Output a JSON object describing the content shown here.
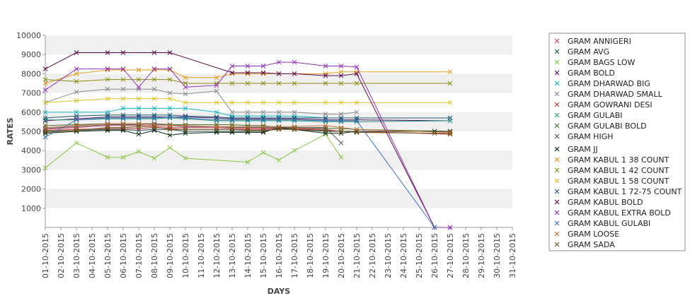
{
  "chart_data": {
    "type": "line",
    "xlabel": "DAYS",
    "ylabel": "RATES",
    "ylim": [
      0,
      10000
    ],
    "y_ticks": [
      1000,
      2000,
      3000,
      4000,
      5000,
      6000,
      7000,
      8000,
      9000,
      10000
    ],
    "legend_position": "right",
    "grid": false,
    "band_color": "#f0f0f0",
    "categories": [
      "01-10-2015",
      "02-10-2015",
      "03-10-2015",
      "04-10-2015",
      "05-10-2015",
      "06-10-2015",
      "07-10-2015",
      "08-10-2015",
      "09-10-2015",
      "10-10-2015",
      "11-10-2015",
      "12-10-2015",
      "13-10-2015",
      "14-10-2015",
      "15-10-2015",
      "16-10-2015",
      "17-10-2015",
      "18-10-2015",
      "19-10-2015",
      "20-10-2015",
      "21-10-2015",
      "22-10-2015",
      "23-10-2015",
      "24-10-2015",
      "25-10-2015",
      "26-10-2015",
      "27-10-2015",
      "28-10-2015",
      "29-10-2015",
      "30-10-2015",
      "31-10-2015"
    ],
    "series": [
      {
        "name": "GRAM ANNIGERI",
        "color": "#d6446e",
        "values": [
          5100,
          null,
          5200,
          null,
          5300,
          5300,
          5300,
          5300,
          5200,
          5200,
          null,
          5200,
          5150,
          5150,
          5150,
          5150,
          5150,
          null,
          5100,
          5000,
          5000,
          null,
          null,
          null,
          null,
          null,
          4850,
          null,
          null,
          null,
          null
        ]
      },
      {
        "name": "GRAM AVG",
        "color": "#1f4f4f",
        "values": [
          5000,
          null,
          5050,
          null,
          5100,
          5100,
          5050,
          5100,
          5100,
          5000,
          null,
          5000,
          5000,
          5000,
          5000,
          5150,
          5100,
          null,
          5000,
          5000,
          5000,
          null,
          null,
          null,
          null,
          5000,
          5000,
          null,
          null,
          null,
          null
        ]
      },
      {
        "name": "GRAM BAGS LOW",
        "color": "#88c540",
        "values": [
          3100,
          null,
          4400,
          null,
          3650,
          3650,
          3950,
          3600,
          4150,
          3600,
          null,
          null,
          null,
          3400,
          3900,
          3500,
          4000,
          null,
          4850,
          3650,
          null,
          null,
          null,
          null,
          null,
          null,
          null,
          null,
          null,
          null,
          null
        ]
      },
      {
        "name": "GRAM BOLD",
        "color": "#4b1560",
        "values": [
          5550,
          null,
          5650,
          null,
          5750,
          5750,
          5750,
          5750,
          5750,
          5750,
          null,
          5700,
          5650,
          5650,
          5650,
          5650,
          5650,
          null,
          5600,
          5600,
          5600,
          null,
          null,
          null,
          null,
          null,
          5550,
          null,
          null,
          null,
          null
        ]
      },
      {
        "name": "GRAM DHARWAD BIG",
        "color": "#17b3c4",
        "values": [
          6000,
          null,
          6000,
          null,
          6000,
          6200,
          6200,
          6200,
          6200,
          6200,
          null,
          6000,
          5800,
          5800,
          5800,
          5800,
          5800,
          null,
          5700,
          5700,
          5700,
          null,
          null,
          null,
          null,
          null,
          5700,
          null,
          null,
          null,
          null
        ]
      },
      {
        "name": "GRAM DHARWAD SMALL",
        "color": "#8a8a8a",
        "values": [
          6500,
          null,
          7050,
          null,
          7200,
          7200,
          7200,
          7200,
          7000,
          6950,
          null,
          7100,
          6000,
          6000,
          6000,
          6000,
          6000,
          null,
          5900,
          5900,
          6000,
          null,
          null,
          null,
          null,
          null,
          null,
          null,
          null,
          null,
          null
        ]
      },
      {
        "name": "GRAM GOWRANI DESI",
        "color": "#c43a2f",
        "values": [
          5050,
          null,
          5100,
          null,
          5150,
          5150,
          5150,
          5200,
          5150,
          5100,
          null,
          5100,
          5100,
          5100,
          5100,
          5150,
          5150,
          null,
          5050,
          5000,
          4950,
          null,
          null,
          null,
          null,
          null,
          4900,
          null,
          null,
          null,
          null
        ]
      },
      {
        "name": "GRAM GULABI",
        "color": "#2a9a82",
        "values": [
          5600,
          null,
          5600,
          null,
          5650,
          5650,
          5650,
          5650,
          5700,
          5650,
          null,
          5550,
          5550,
          5550,
          5550,
          5550,
          5550,
          null,
          5500,
          5500,
          5500,
          null,
          null,
          null,
          null,
          null,
          5550,
          null,
          null,
          null,
          null
        ]
      },
      {
        "name": "GRAM GULABI BOLD",
        "color": "#4e6e2a",
        "values": [
          5300,
          null,
          5350,
          null,
          5400,
          5400,
          5400,
          5400,
          5350,
          5350,
          null,
          5350,
          5350,
          5300,
          5300,
          5200,
          5200,
          null,
          5150,
          5150,
          5100,
          null,
          null,
          null,
          null,
          null,
          5000,
          null,
          null,
          null,
          null
        ]
      },
      {
        "name": "GRAM HIGH",
        "color": "#555555",
        "values": [
          5150,
          null,
          5250,
          null,
          5350,
          5350,
          5350,
          5400,
          5300,
          5250,
          null,
          5250,
          5200,
          5200,
          5200,
          5200,
          5200,
          null,
          5200,
          4400,
          null,
          null,
          null,
          null,
          null,
          null,
          null,
          null,
          null,
          null,
          null
        ]
      },
      {
        "name": "GRAM JJ",
        "color": "#0d2a14",
        "values": [
          4900,
          null,
          5000,
          null,
          5050,
          5050,
          4850,
          5050,
          4800,
          4900,
          null,
          4950,
          4950,
          4950,
          4950,
          5200,
          5100,
          null,
          4900,
          4900,
          5000,
          null,
          null,
          null,
          null,
          5000,
          5000,
          null,
          null,
          null,
          null
        ]
      },
      {
        "name": "GRAM KABUL 1 38 COUNT",
        "color": "#e39a1b",
        "values": [
          7500,
          null,
          8000,
          null,
          8200,
          8200,
          8200,
          8200,
          8200,
          7800,
          null,
          7800,
          8000,
          8000,
          8000,
          8000,
          8000,
          null,
          8000,
          8100,
          8100,
          null,
          null,
          null,
          null,
          null,
          8100,
          null,
          null,
          null,
          null
        ]
      },
      {
        "name": "GRAM KABUL 1 42 COUNT",
        "color": "#8c8c14",
        "values": [
          7700,
          null,
          7600,
          null,
          7700,
          7700,
          7700,
          7700,
          7700,
          7500,
          null,
          7500,
          7500,
          7500,
          7500,
          7500,
          7500,
          null,
          7500,
          7500,
          7500,
          null,
          null,
          null,
          null,
          null,
          7500,
          null,
          null,
          null,
          null
        ]
      },
      {
        "name": "GRAM KABUL 1 58 COUNT",
        "color": "#d9c21f",
        "values": [
          6500,
          null,
          6600,
          null,
          6700,
          6700,
          6700,
          6700,
          6700,
          6500,
          null,
          6500,
          6500,
          6500,
          6500,
          6500,
          6500,
          null,
          6500,
          6500,
          6500,
          null,
          null,
          null,
          null,
          null,
          6500,
          null,
          null,
          null,
          null
        ]
      },
      {
        "name": "GRAM KABUL 1 72-75 COUNT",
        "color": "#1e5c6e",
        "values": [
          5700,
          null,
          5800,
          null,
          5850,
          5850,
          5850,
          5850,
          5850,
          5800,
          null,
          5750,
          5700,
          5700,
          5700,
          5700,
          5700,
          null,
          5700,
          5700,
          5700,
          null,
          null,
          null,
          null,
          null,
          5700,
          null,
          null,
          null,
          null
        ]
      },
      {
        "name": "GRAM KABUL BOLD",
        "color": "#5a0b48",
        "values": [
          8250,
          null,
          9100,
          null,
          9100,
          9100,
          null,
          9100,
          9100,
          null,
          null,
          null,
          8050,
          8050,
          8050,
          8000,
          8000,
          null,
          7900,
          7900,
          8000,
          null,
          null,
          null,
          null,
          0,
          0,
          null,
          null,
          null,
          null
        ]
      },
      {
        "name": "GRAM KABUL EXTRA BOLD",
        "color": "#9030b8",
        "values": [
          7150,
          null,
          8250,
          null,
          8250,
          8250,
          7300,
          8250,
          8250,
          7300,
          null,
          7400,
          8400,
          8400,
          8400,
          8600,
          8600,
          null,
          8400,
          8400,
          8350,
          null,
          null,
          null,
          null,
          0,
          0,
          null,
          null,
          null,
          null
        ]
      },
      {
        "name": "GRAM KABUL GULABI",
        "color": "#3a74b8",
        "values": [
          4700,
          null,
          5600,
          null,
          5700,
          5700,
          5700,
          5700,
          5750,
          5700,
          null,
          5600,
          5600,
          5600,
          5600,
          5600,
          5600,
          null,
          5550,
          5550,
          5550,
          null,
          null,
          null,
          null,
          0,
          null,
          null,
          null,
          null,
          null
        ]
      },
      {
        "name": "GRAM LOOSE",
        "color": "#c0743a",
        "values": [
          5200,
          null,
          5300,
          null,
          5400,
          5400,
          5400,
          5350,
          5300,
          5300,
          null,
          5250,
          5250,
          5250,
          5250,
          5250,
          5250,
          null,
          5300,
          5200,
          5100,
          null,
          null,
          null,
          null,
          null,
          4950,
          null,
          null,
          null,
          null
        ]
      },
      {
        "name": "GRAM SADA",
        "color": "#6e5c1e",
        "values": [
          4950,
          null,
          5050,
          null,
          5200,
          5200,
          5250,
          5250,
          5100,
          5100,
          null,
          5100,
          5100,
          5050,
          5050,
          5100,
          5100,
          null,
          5050,
          5000,
          4950,
          null,
          null,
          null,
          null,
          4900,
          4850,
          null,
          null,
          null,
          null
        ]
      }
    ]
  }
}
